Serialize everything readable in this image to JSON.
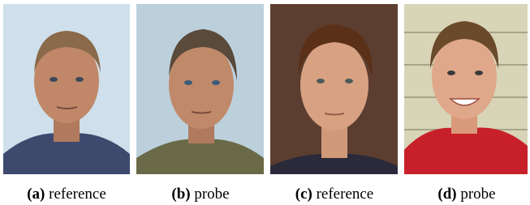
{
  "panels": [
    {
      "label": "(a)",
      "caption": "reference"
    },
    {
      "label": "(b)",
      "caption": "probe"
    },
    {
      "label": "(c)",
      "caption": "reference"
    },
    {
      "label": "(d)",
      "caption": "probe"
    }
  ]
}
